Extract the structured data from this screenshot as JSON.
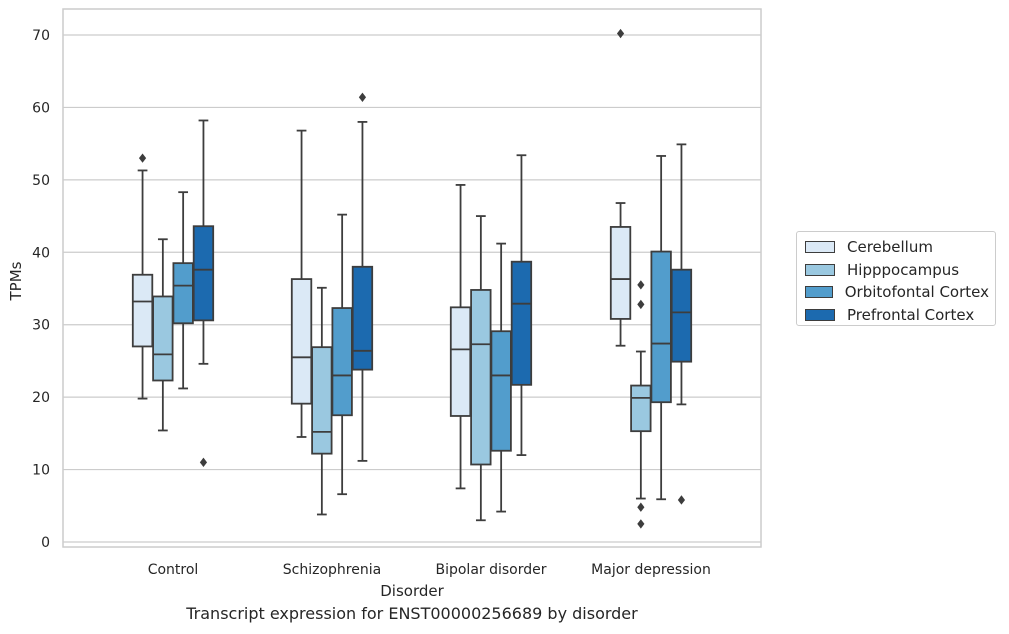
{
  "chart_data": {
    "type": "box",
    "caption": "Transcript expression for ENST00000256689 by disorder",
    "xlabel": "Disorder",
    "ylabel": "TPMs",
    "ylim": [
      -1,
      73.5
    ],
    "yticks": [
      0,
      10,
      20,
      30,
      40,
      50,
      60,
      70
    ],
    "grid": "horizontal",
    "legend_position": "right",
    "categories": [
      "Control",
      "Schizophrenia",
      "Bipolar disorder",
      "Major depression"
    ],
    "series": [
      {
        "name": "Cerebellum",
        "color": "#dbe9f6",
        "boxes": [
          {
            "whisker_low": 19.8,
            "q1": 27.0,
            "median": 33.2,
            "q3": 36.9,
            "whisker_high": 51.3,
            "outliers": [
              53.0
            ]
          },
          {
            "whisker_low": 14.5,
            "q1": 19.1,
            "median": 25.5,
            "q3": 36.3,
            "whisker_high": 56.8,
            "outliers": []
          },
          {
            "whisker_low": 7.4,
            "q1": 17.4,
            "median": 26.6,
            "q3": 32.4,
            "whisker_high": 49.3,
            "outliers": []
          },
          {
            "whisker_low": 27.1,
            "q1": 30.8,
            "median": 36.3,
            "q3": 43.5,
            "whisker_high": 46.8,
            "outliers": [
              70.2
            ]
          }
        ]
      },
      {
        "name": "Hipppocampus",
        "color": "#9ac8e0",
        "boxes": [
          {
            "whisker_low": 15.4,
            "q1": 22.3,
            "median": 25.9,
            "q3": 33.9,
            "whisker_high": 41.8,
            "outliers": []
          },
          {
            "whisker_low": 3.8,
            "q1": 12.2,
            "median": 15.2,
            "q3": 26.9,
            "whisker_high": 35.1,
            "outliers": []
          },
          {
            "whisker_low": 3.0,
            "q1": 10.7,
            "median": 27.3,
            "q3": 34.8,
            "whisker_high": 45.0,
            "outliers": []
          },
          {
            "whisker_low": 6.0,
            "q1": 15.3,
            "median": 19.9,
            "q3": 21.6,
            "whisker_high": 26.3,
            "outliers": [
              35.5,
              32.8,
              4.8,
              2.5
            ]
          }
        ]
      },
      {
        "name": "Orbitofontal Cortex",
        "color": "#529dcc",
        "boxes": [
          {
            "whisker_low": 21.2,
            "q1": 30.2,
            "median": 35.4,
            "q3": 38.5,
            "whisker_high": 48.3,
            "outliers": []
          },
          {
            "whisker_low": 6.6,
            "q1": 17.5,
            "median": 23.0,
            "q3": 32.3,
            "whisker_high": 45.2,
            "outliers": []
          },
          {
            "whisker_low": 4.2,
            "q1": 12.6,
            "median": 23.0,
            "q3": 29.1,
            "whisker_high": 41.2,
            "outliers": []
          },
          {
            "whisker_low": 5.9,
            "q1": 19.3,
            "median": 27.4,
            "q3": 40.1,
            "whisker_high": 53.3,
            "outliers": []
          }
        ]
      },
      {
        "name": "Prefrontal Cortex",
        "color": "#1c6aaf",
        "boxes": [
          {
            "whisker_low": 24.6,
            "q1": 30.6,
            "median": 37.6,
            "q3": 43.6,
            "whisker_high": 58.2,
            "outliers": [
              11.0
            ]
          },
          {
            "whisker_low": 11.2,
            "q1": 23.8,
            "median": 26.4,
            "q3": 38.0,
            "whisker_high": 58.0,
            "outliers": [
              61.4
            ]
          },
          {
            "whisker_low": 12.0,
            "q1": 21.7,
            "median": 32.9,
            "q3": 38.7,
            "whisker_high": 53.4,
            "outliers": []
          },
          {
            "whisker_low": 19.0,
            "q1": 24.9,
            "median": 31.7,
            "q3": 37.6,
            "whisker_high": 54.9,
            "outliers": [
              5.8
            ]
          }
        ]
      }
    ]
  }
}
